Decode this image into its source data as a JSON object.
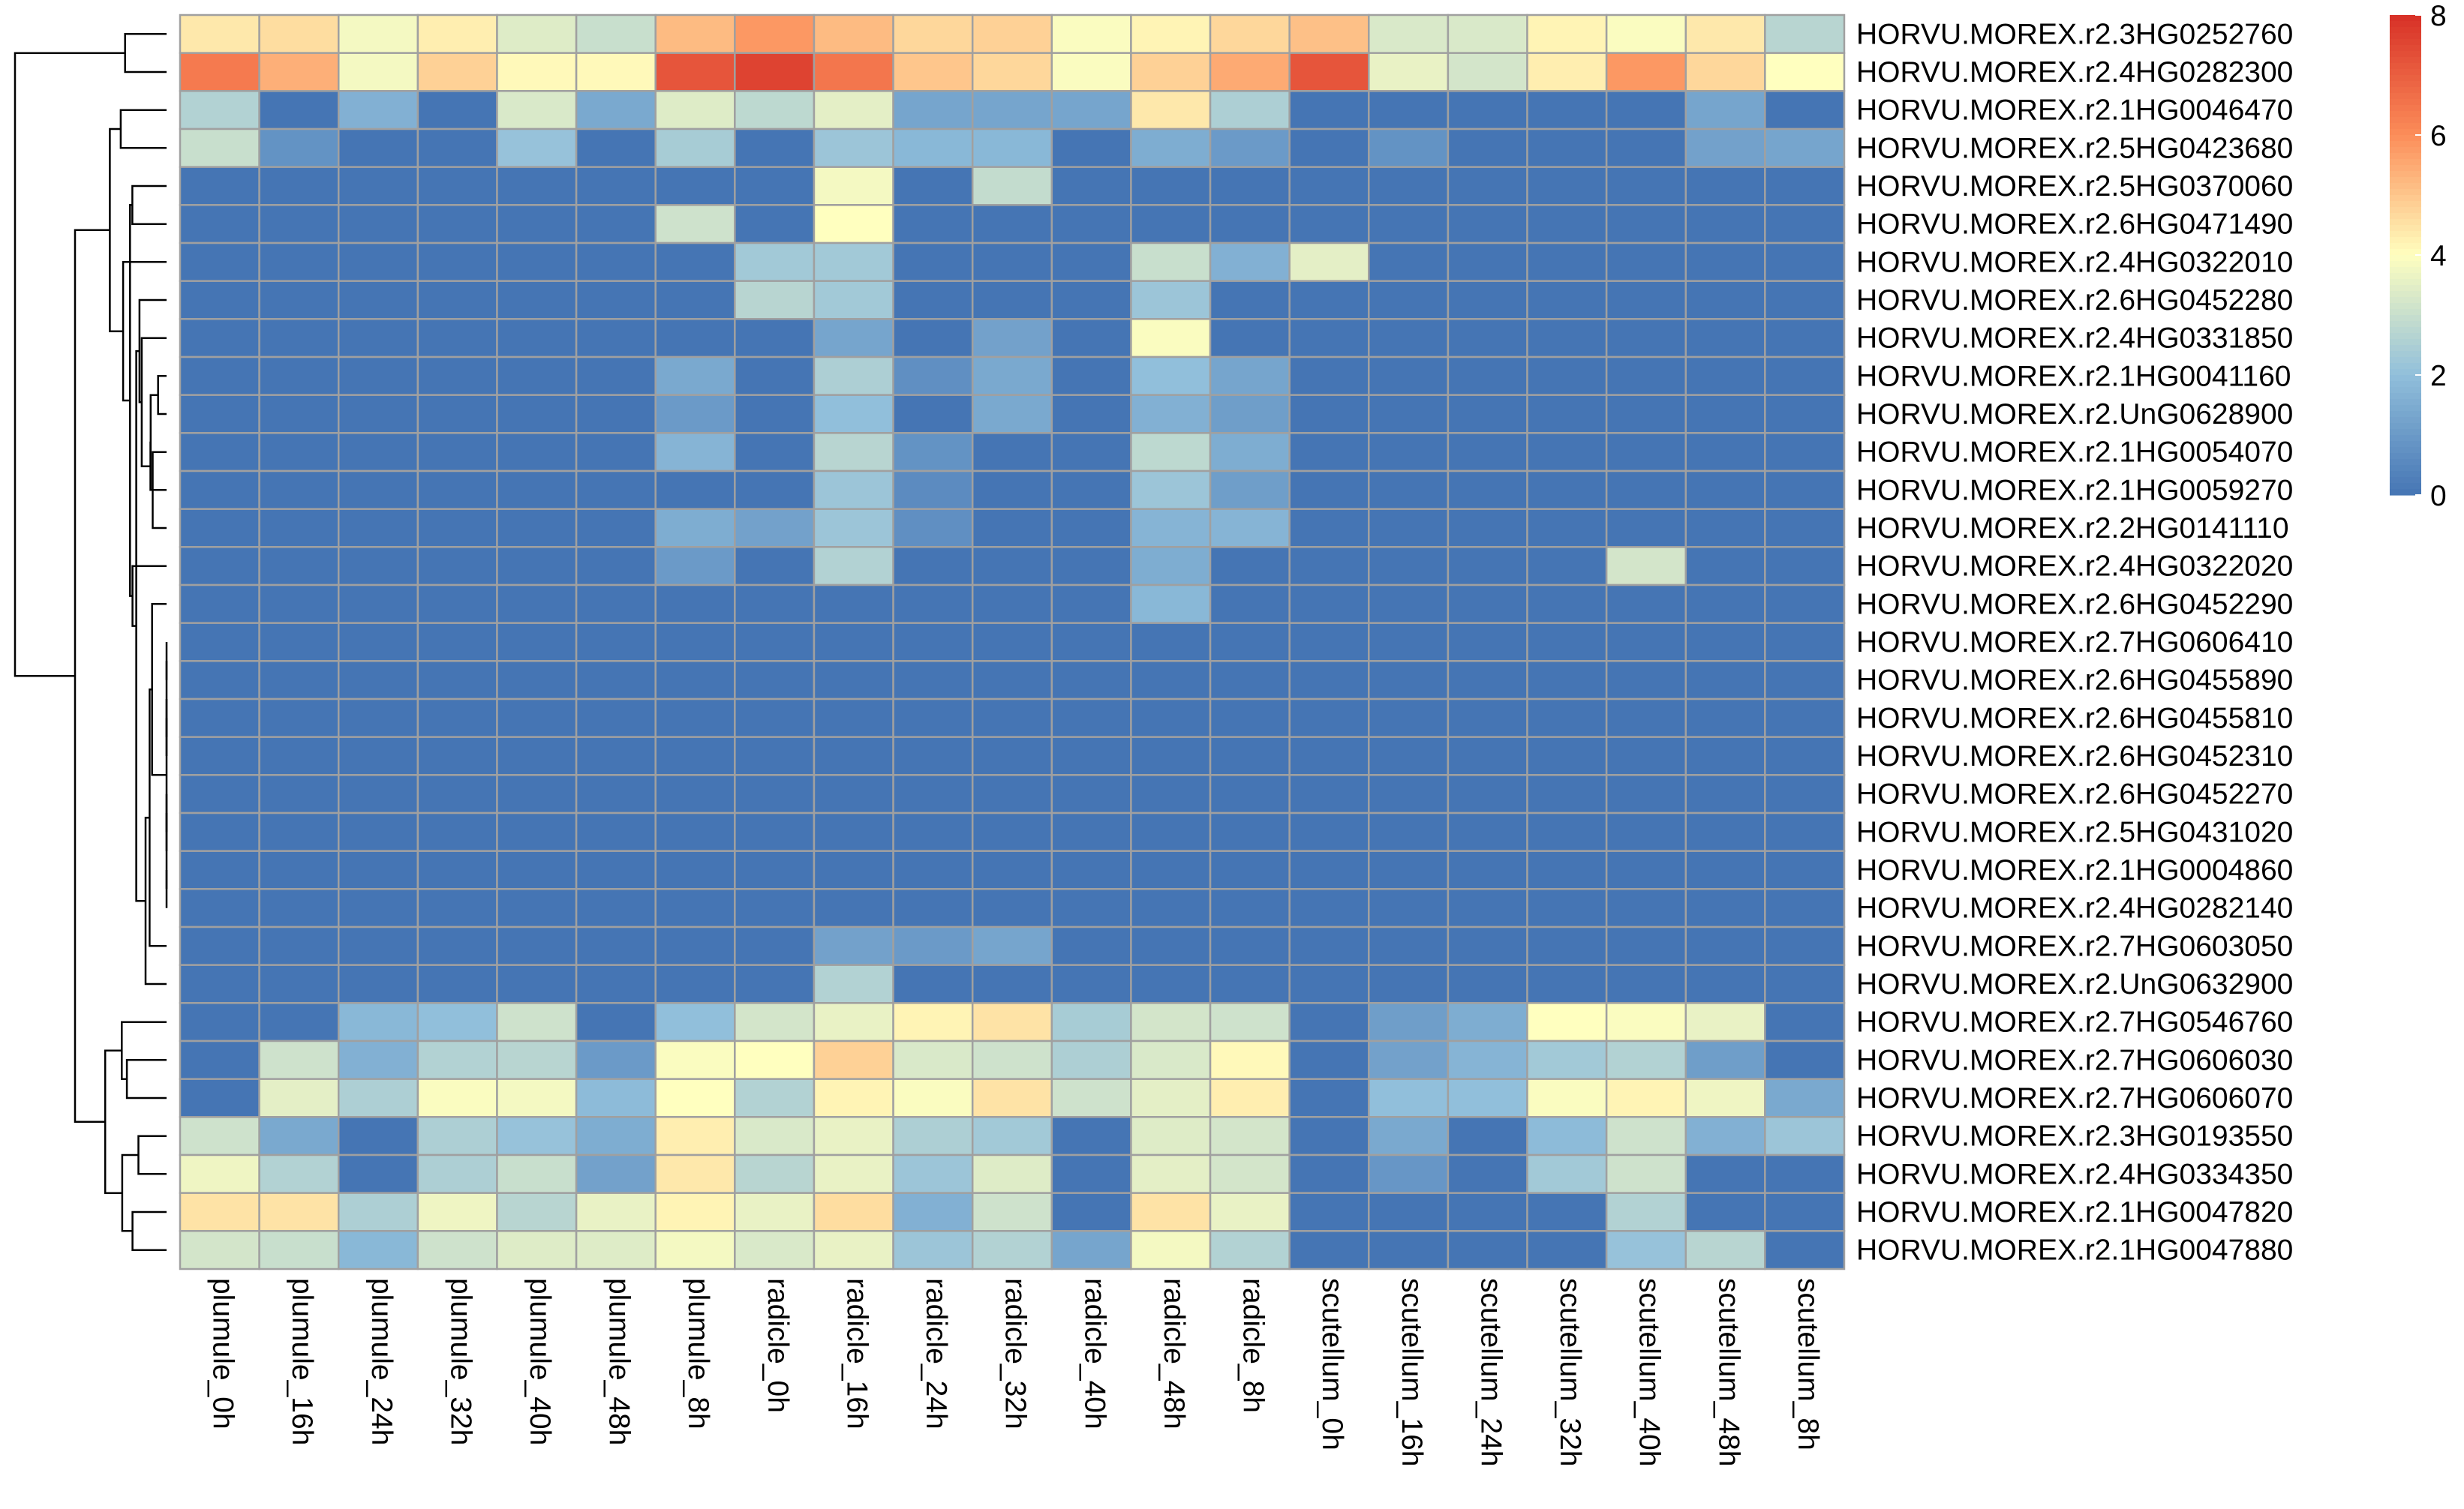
{
  "chart_data": {
    "type": "heatmap",
    "title": "",
    "xlabel": "",
    "ylabel": "",
    "columns": [
      "plumule_0h",
      "plumule_16h",
      "plumule_24h",
      "plumule_32h",
      "plumule_40h",
      "plumule_48h",
      "plumule_8h",
      "radicle_0h",
      "radicle_16h",
      "radicle_24h",
      "radicle_32h",
      "radicle_40h",
      "radicle_48h",
      "radicle_8h",
      "scutellum_0h",
      "scutellum_16h",
      "scutellum_24h",
      "scutellum_32h",
      "scutellum_40h",
      "scutellum_48h",
      "scutellum_8h"
    ],
    "rows": [
      "HORVU.MOREX.r2.3HG0252760",
      "HORVU.MOREX.r2.4HG0282300",
      "HORVU.MOREX.r2.1HG0046470",
      "HORVU.MOREX.r2.5HG0423680",
      "HORVU.MOREX.r2.5HG0370060",
      "HORVU.MOREX.r2.6HG0471490",
      "HORVU.MOREX.r2.4HG0322010",
      "HORVU.MOREX.r2.6HG0452280",
      "HORVU.MOREX.r2.4HG0331850",
      "HORVU.MOREX.r2.1HG0041160",
      "HORVU.MOREX.r2.UnG0628900",
      "HORVU.MOREX.r2.1HG0054070",
      "HORVU.MOREX.r2.1HG0059270",
      "HORVU.MOREX.r2.2HG0141110",
      "HORVU.MOREX.r2.4HG0322020",
      "HORVU.MOREX.r2.6HG0452290",
      "HORVU.MOREX.r2.7HG0606410",
      "HORVU.MOREX.r2.6HG0455890",
      "HORVU.MOREX.r2.6HG0455810",
      "HORVU.MOREX.r2.6HG0452310",
      "HORVU.MOREX.r2.6HG0452270",
      "HORVU.MOREX.r2.5HG0431020",
      "HORVU.MOREX.r2.1HG0004860",
      "HORVU.MOREX.r2.4HG0282140",
      "HORVU.MOREX.r2.7HG0603050",
      "HORVU.MOREX.r2.UnG0632900",
      "HORVU.MOREX.r2.7HG0546760",
      "HORVU.MOREX.r2.7HG0606030",
      "HORVU.MOREX.r2.7HG0606070",
      "HORVU.MOREX.r2.3HG0193550",
      "HORVU.MOREX.r2.4HG0334350",
      "HORVU.MOREX.r2.1HG0047820",
      "HORVU.MOREX.r2.1HG0047880"
    ],
    "values": [
      [
        4.4,
        4.6,
        3.8,
        4.3,
        3.4,
        3.0,
        5.2,
        5.8,
        5.2,
        4.7,
        4.8,
        3.9,
        4.2,
        4.7,
        5.1,
        3.3,
        3.3,
        4.2,
        3.9,
        4.4,
        2.7
      ],
      [
        6.4,
        5.4,
        3.8,
        4.8,
        4.1,
        4.1,
        7.2,
        7.6,
        6.5,
        5.0,
        4.7,
        3.9,
        4.8,
        5.5,
        7.2,
        3.6,
        3.2,
        4.3,
        5.8,
        4.7,
        4.0
      ],
      [
        2.6,
        0,
        1.6,
        0,
        3.3,
        1.4,
        3.4,
        2.8,
        3.5,
        1.3,
        1.3,
        1.3,
        4.4,
        2.5,
        0,
        0,
        0,
        0,
        0,
        1.3,
        0
      ],
      [
        3.0,
        0.8,
        0,
        0,
        2.1,
        0,
        2.4,
        0,
        2.2,
        1.8,
        1.8,
        0,
        1.5,
        1.0,
        0,
        0.8,
        0,
        0,
        0,
        1.2,
        1.3
      ],
      [
        0,
        0,
        0,
        0,
        0,
        0,
        0,
        0,
        3.8,
        0,
        2.9,
        0,
        0,
        0,
        0,
        0,
        0,
        0,
        0,
        0,
        0
      ],
      [
        0,
        0,
        0,
        0,
        0,
        0,
        3.1,
        0,
        4.0,
        0,
        0,
        0,
        0,
        0,
        0,
        0,
        0,
        0,
        0,
        0,
        0
      ],
      [
        0,
        0,
        0,
        0,
        0,
        0,
        0,
        2.3,
        2.3,
        0,
        0,
        0,
        3.0,
        1.6,
        3.5,
        0,
        0,
        0,
        0,
        0,
        0
      ],
      [
        0,
        0,
        0,
        0,
        0,
        0,
        0,
        2.7,
        2.3,
        0,
        0,
        0,
        2.2,
        0,
        0,
        0,
        0,
        0,
        0,
        0,
        0
      ],
      [
        0,
        0,
        0,
        0,
        0,
        0,
        0,
        0,
        1.3,
        0,
        1.2,
        0,
        3.9,
        0,
        0,
        0,
        0,
        0,
        0,
        0,
        0
      ],
      [
        0,
        0,
        0,
        0,
        0,
        0,
        1.4,
        0,
        2.5,
        0.7,
        1.4,
        0,
        2.0,
        1.3,
        0,
        0,
        0,
        0,
        0,
        0,
        0
      ],
      [
        0,
        0,
        0,
        0,
        0,
        0,
        1.0,
        0,
        2.0,
        0,
        1.4,
        0,
        1.6,
        1.1,
        0,
        0,
        0,
        0,
        0,
        0,
        0
      ],
      [
        0,
        0,
        0,
        0,
        0,
        0,
        1.7,
        0,
        2.7,
        0.8,
        0,
        0,
        2.8,
        1.5,
        0,
        0,
        0,
        0,
        0,
        0,
        0
      ],
      [
        0,
        0,
        0,
        0,
        0,
        0,
        0,
        0,
        2.2,
        0.6,
        0,
        0,
        2.2,
        1.1,
        0,
        0,
        0,
        0,
        0,
        0,
        0
      ],
      [
        0,
        0,
        0,
        0,
        0,
        0,
        1.5,
        1.2,
        2.2,
        0.7,
        0,
        0,
        1.7,
        1.7,
        0,
        0,
        0,
        0,
        0,
        0,
        0
      ],
      [
        0,
        0,
        0,
        0,
        0,
        0,
        1.0,
        0,
        2.6,
        0,
        0,
        0,
        1.5,
        0,
        0,
        0,
        0,
        0,
        3.2,
        0,
        0
      ],
      [
        0,
        0,
        0,
        0,
        0,
        0,
        0,
        0,
        0,
        0,
        0,
        0,
        1.8,
        0,
        0,
        0,
        0,
        0,
        0,
        0,
        0
      ],
      [
        0,
        0,
        0,
        0,
        0,
        0,
        0,
        0,
        0,
        0,
        0,
        0,
        0,
        0,
        0,
        0,
        0,
        0,
        0,
        0,
        0
      ],
      [
        0,
        0,
        0,
        0,
        0,
        0,
        0,
        0,
        0,
        0,
        0,
        0,
        0,
        0,
        0,
        0,
        0,
        0,
        0,
        0,
        0
      ],
      [
        0,
        0,
        0,
        0,
        0,
        0,
        0,
        0,
        0,
        0,
        0,
        0,
        0,
        0,
        0,
        0,
        0,
        0,
        0,
        0,
        0
      ],
      [
        0,
        0,
        0,
        0,
        0,
        0,
        0,
        0,
        0,
        0,
        0,
        0,
        0,
        0,
        0,
        0,
        0,
        0,
        0,
        0,
        0
      ],
      [
        0,
        0,
        0,
        0,
        0,
        0,
        0,
        0,
        0,
        0,
        0,
        0,
        0,
        0,
        0,
        0,
        0,
        0,
        0,
        0,
        0
      ],
      [
        0,
        0,
        0,
        0,
        0,
        0,
        0,
        0,
        0,
        0,
        0,
        0,
        0,
        0,
        0,
        0,
        0,
        0,
        0,
        0,
        0
      ],
      [
        0,
        0,
        0,
        0,
        0,
        0,
        0,
        0,
        0,
        0,
        0,
        0,
        0,
        0,
        0,
        0,
        0,
        0,
        0,
        0,
        0
      ],
      [
        0,
        0,
        0,
        0,
        0,
        0,
        0,
        0,
        0,
        0,
        0,
        0,
        0,
        0,
        0,
        0,
        0,
        0,
        0,
        0,
        0
      ],
      [
        0,
        0,
        0,
        0,
        0,
        0,
        0,
        0,
        1.2,
        1.0,
        1.3,
        0,
        0,
        0,
        0,
        0,
        0,
        0,
        0,
        0,
        0
      ],
      [
        0,
        0,
        0,
        0,
        0,
        0,
        0,
        0,
        2.6,
        0,
        0,
        0,
        0,
        0,
        0,
        0,
        0,
        0,
        0,
        0,
        0
      ],
      [
        0,
        0,
        1.8,
        2.0,
        3.1,
        0,
        2.0,
        3.2,
        3.6,
        4.2,
        4.5,
        2.4,
        3.2,
        3.1,
        0,
        1.1,
        1.5,
        4.0,
        3.9,
        3.6,
        0
      ],
      [
        0,
        3.1,
        1.6,
        2.6,
        2.7,
        1.0,
        3.9,
        4.0,
        4.8,
        3.3,
        3.1,
        2.5,
        3.3,
        4.1,
        0,
        1.2,
        1.7,
        2.3,
        2.6,
        1.1,
        0
      ],
      [
        0,
        3.5,
        2.5,
        3.9,
        3.8,
        1.9,
        4.0,
        2.6,
        4.2,
        3.9,
        4.5,
        3.1,
        3.5,
        4.3,
        0,
        2.0,
        2.0,
        3.9,
        4.2,
        3.7,
        1.4
      ],
      [
        3.1,
        1.4,
        0,
        2.5,
        2.1,
        1.5,
        4.3,
        3.3,
        3.6,
        2.5,
        2.3,
        0,
        3.4,
        3.2,
        0,
        1.4,
        0,
        1.9,
        3.1,
        1.6,
        2.2
      ],
      [
        3.7,
        2.6,
        0,
        2.5,
        3.0,
        1.2,
        4.4,
        2.7,
        3.6,
        2.2,
        3.4,
        0,
        3.5,
        3.2,
        0,
        0.9,
        0,
        2.3,
        3.1,
        0,
        0
      ],
      [
        4.5,
        4.5,
        2.5,
        3.7,
        2.7,
        3.6,
        4.2,
        3.6,
        4.6,
        1.6,
        3.1,
        0,
        4.5,
        3.6,
        0,
        0,
        0,
        0,
        2.6,
        0,
        0
      ],
      [
        3.2,
        3.0,
        1.8,
        3.1,
        3.4,
        3.4,
        3.8,
        3.3,
        3.6,
        2.2,
        2.6,
        1.3,
        3.8,
        2.6,
        0,
        0,
        0,
        0,
        2.1,
        2.7,
        0
      ]
    ],
    "scale": {
      "min": 0,
      "max": 8,
      "ticks": [
        0,
        2,
        4,
        6,
        8
      ]
    },
    "colors": {
      "low": "#4575b4",
      "mid": "#ffffbf",
      "high": "#d73027",
      "cell_border": "#a0a0a0"
    },
    "legend_position": "top-right",
    "row_dendrogram": true,
    "grid": false
  }
}
